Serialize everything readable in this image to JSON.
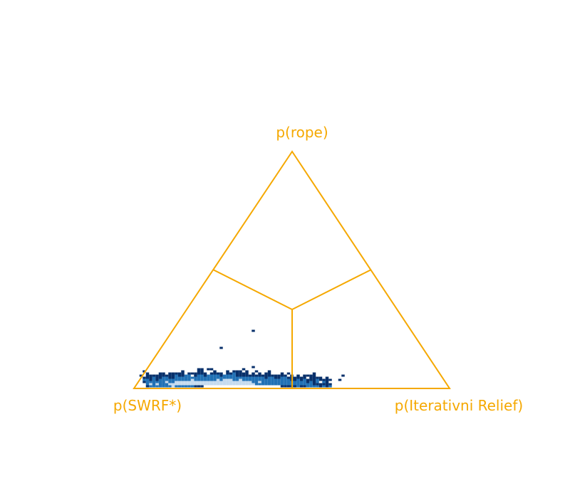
{
  "chart_data": {
    "type": "hexbin-ternary",
    "corner_labels": {
      "top": "p(rope)",
      "left": "p(SWRF*)",
      "right": "p(Iterativni Relief)"
    },
    "colors": {
      "frame": "#f5a800",
      "density_low": "#08306b",
      "density_mid": "#2171b5",
      "density_high": "#c6dbef"
    },
    "cluster": {
      "center": {
        "p_SWRF": 0.66,
        "p_rope": 0.03,
        "p_IterativniRelief": 0.31
      },
      "spread": {
        "p_SWRF": 0.16,
        "p_rope": 0.02
      }
    },
    "outliers": [
      {
        "p_SWRF": 0.5,
        "p_rope": 0.24,
        "p_IterativniRelief": 0.26
      },
      {
        "p_SWRF": 0.64,
        "p_rope": 0.17,
        "p_IterativniRelief": 0.19
      },
      {
        "p_SWRF": 0.31,
        "p_rope": 0.05,
        "p_IterativniRelief": 0.64
      },
      {
        "p_SWRF": 0.36,
        "p_rope": 0.04,
        "p_IterativniRelief": 0.6
      },
      {
        "p_SWRF": 0.33,
        "p_rope": 0.04,
        "p_IterativniRelief": 0.63
      }
    ]
  }
}
